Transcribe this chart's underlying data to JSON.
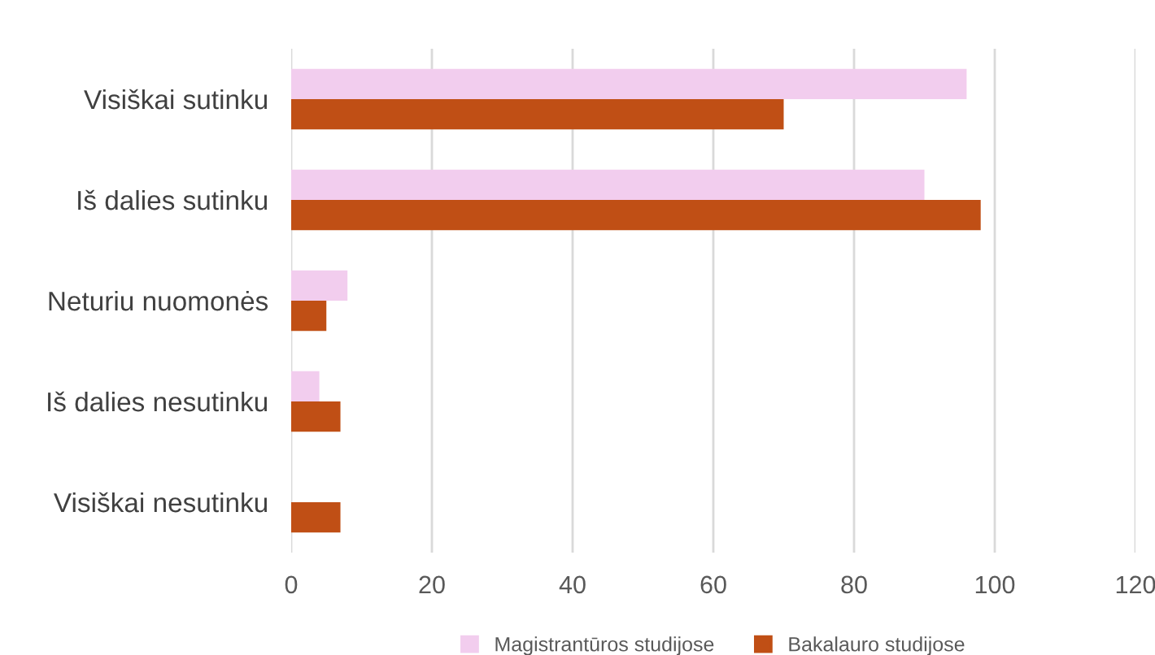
{
  "chart_data": {
    "type": "bar",
    "orientation": "horizontal",
    "categories": [
      "Visiškai sutinku",
      "Iš dalies sutinku",
      "Neturiu nuomonės",
      "Iš dalies nesutinku",
      "Visiškai nesutinku"
    ],
    "series": [
      {
        "name": "Magistrantūros studijose",
        "color": "#f2cdee",
        "values": [
          96,
          90,
          8,
          4,
          0
        ]
      },
      {
        "name": "Bakalauro studijose",
        "color": "#c04f15",
        "values": [
          70,
          98,
          5,
          7,
          7
        ]
      }
    ],
    "xlim": [
      0,
      120
    ],
    "xticks": [
      0,
      20,
      40,
      60,
      80,
      100,
      120
    ],
    "grid": "x",
    "legend": "bottom"
  }
}
